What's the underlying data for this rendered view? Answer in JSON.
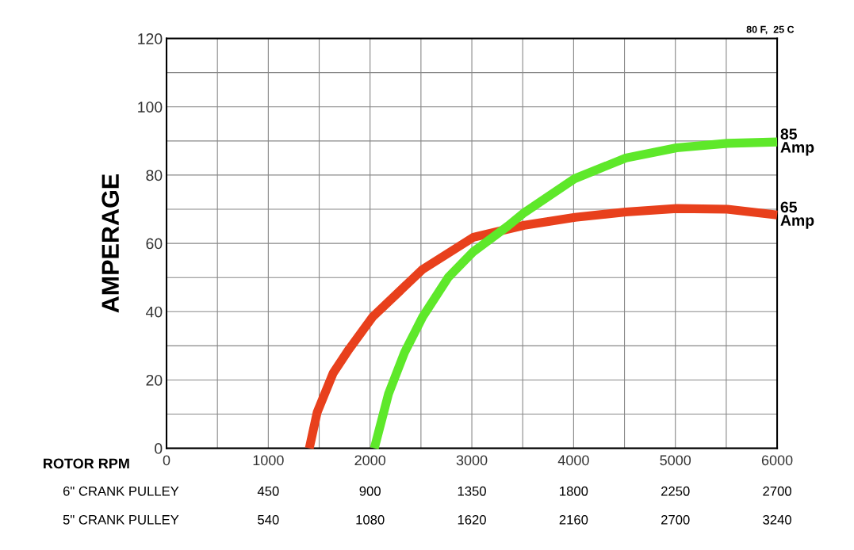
{
  "chart_data": {
    "type": "line",
    "ylabel": "AMPERAGE",
    "xlabel": "ROTOR RPM",
    "annotations": [
      "80 F,  25 C",
      "6\" CRANK PULLEY",
      "450",
      "900",
      "1350",
      "1800",
      "2250",
      "2700",
      "5\" CRANK PULLEY",
      "540",
      "1080",
      "1620",
      "2160",
      "2700",
      "3240"
    ],
    "xlim": [
      0,
      6000
    ],
    "ylim": [
      0,
      120
    ],
    "xticks": [
      0,
      {
        "value": 500,
        "label": null
      },
      1000,
      {
        "value": 1500,
        "label": null
      },
      2000,
      {
        "value": 2500,
        "label": null
      },
      3000,
      {
        "value": 3500,
        "label": null
      },
      4000,
      {
        "value": 4500,
        "label": null
      },
      5000,
      {
        "value": 5500,
        "label": null
      },
      6000
    ],
    "yticks": [
      0,
      {
        "value": 10,
        "label": null
      },
      20,
      {
        "value": 30,
        "label": null
      },
      40,
      {
        "value": 50,
        "label": null
      },
      60,
      {
        "value": 70,
        "label": null
      },
      80,
      {
        "value": 90,
        "label": null
      },
      100,
      {
        "value": 110,
        "label": null
      },
      120
    ],
    "grid": true,
    "line_style": "solid",
    "marker": "none",
    "series": [
      {
        "name": "65\nAmp",
        "color": "#e8401c",
        "x": [
          1403,
          1480,
          1637,
          1793,
          2026,
          2517,
          3016,
          3515,
          4014,
          4513,
          5012,
          5510,
          6000
        ],
        "values": [
          0,
          10.5,
          22,
          29,
          38.5,
          52.4,
          61.8,
          65.3,
          67.6,
          69.2,
          70.2,
          70,
          68.3
        ]
      },
      {
        "name": "85\nAmp",
        "color": "#5ee82a",
        "x": [
          2042,
          2182,
          2338,
          2517,
          2767,
          3016,
          3351,
          3515,
          4014,
          4513,
          5012,
          5510,
          6000
        ],
        "values": [
          0,
          16,
          28,
          38.5,
          50,
          57.6,
          65,
          69,
          79,
          85,
          88,
          89.3,
          89.7
        ]
      }
    ]
  }
}
